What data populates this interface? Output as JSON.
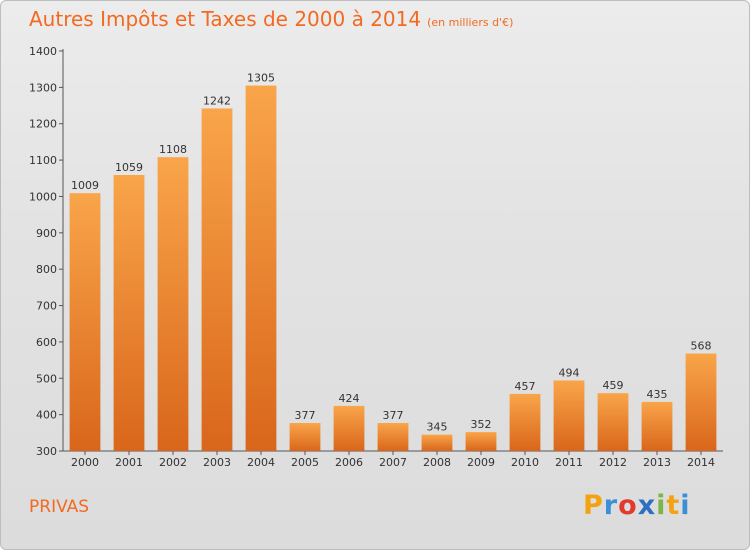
{
  "title": "Autres Impôts et Taxes de 2000 à 2014",
  "subtitle": "(en milliers d'€)",
  "place": "PRIVAS",
  "logo": {
    "letters": [
      "P",
      "r",
      "o",
      "x",
      "i",
      "t",
      "i"
    ],
    "colors": [
      "#f2a30f",
      "#3a8fd6",
      "#e23a2e",
      "#2f6fc2",
      "#7ab648",
      "#f2a30f",
      "#3a8fd6"
    ]
  },
  "colors": {
    "bar_light": "#f9a54a",
    "bar_dark": "#d9661b",
    "title": "#f26a21"
  },
  "chart_data": {
    "type": "bar",
    "title": "Autres Impôts et Taxes de 2000 à 2014",
    "subtitle": "(en milliers d'€)",
    "categories": [
      "2000",
      "2001",
      "2002",
      "2003",
      "2004",
      "2005",
      "2006",
      "2007",
      "2008",
      "2009",
      "2010",
      "2011",
      "2012",
      "2013",
      "2014"
    ],
    "values": [
      1009,
      1059,
      1108,
      1242,
      1305,
      377,
      424,
      377,
      345,
      352,
      457,
      494,
      459,
      435,
      568
    ],
    "ylim": [
      300,
      1400
    ],
    "yticks": [
      300,
      400,
      500,
      600,
      700,
      800,
      900,
      1000,
      1100,
      1200,
      1300,
      1400
    ],
    "grid": false,
    "legend": "none"
  }
}
